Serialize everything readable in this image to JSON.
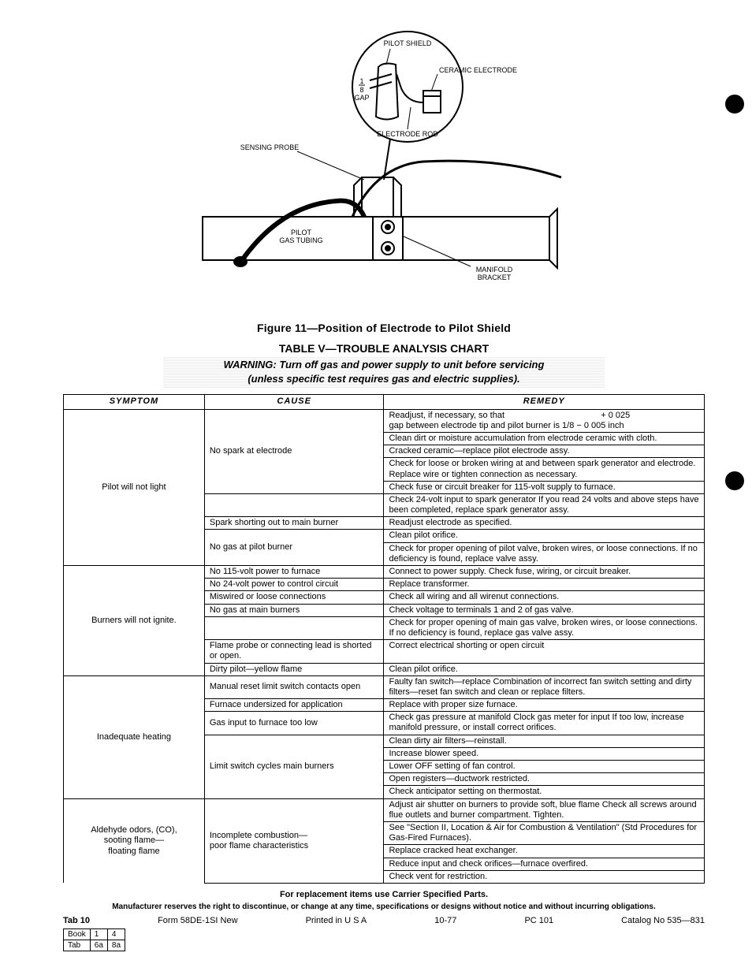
{
  "diagram": {
    "labels": {
      "pilot_shield": "PILOT SHIELD",
      "ceramic_electrode": "CERAMIC ELECTRODE",
      "gap_fraction_top": "1",
      "gap_fraction_bot": "8",
      "gap_word": "GAP",
      "electrode_rod": "ELECTRODE ROD",
      "sensing_probe": "SENSING PROBE",
      "pilot_gas_tubing_l1": "PILOT",
      "pilot_gas_tubing_l2": "GAS TUBING",
      "manifold_l1": "MANIFOLD",
      "manifold_l2": "BRACKET"
    }
  },
  "figure_caption": "Figure 11—Position of Electrode to Pilot Shield",
  "table_title": "TABLE V—TROUBLE ANALYSIS CHART",
  "warning_line1": "WARNING: Turn off gas and power supply to unit before servicing",
  "warning_line2": "(unless specific test requires gas and electric supplies).",
  "headers": {
    "symptom": "SYMPTOM",
    "cause": "CAUSE",
    "remedy": "REMEDY"
  },
  "rows": [
    {
      "section_top": true,
      "symptom": "Pilot will not light",
      "symptom_rowspan": 9,
      "cause": "No spark at electrode",
      "cause_rowspan": 5,
      "remedy": "Readjust, if necessary, so that                                        + 0 025\ngap between electrode tip and pilot burner is 1/8 − 0 005 inch"
    },
    {
      "remedy": "Clean dirt or moisture accumulation from electrode ceramic with cloth."
    },
    {
      "remedy": "Cracked ceramic—replace pilot electrode assy."
    },
    {
      "remedy": "Check for loose or broken wiring at and between spark generator and electrode. Replace wire or tighten connection as necessary."
    },
    {
      "remedy": "Check fuse or circuit breaker for 115-volt supply to furnace."
    },
    {
      "cause": "",
      "cause_rowspan": 1,
      "remedy": "Check 24-volt input to spark generator  If you read 24 volts and above steps have been completed, replace spark generator assy."
    },
    {
      "cause": "Spark shorting out to main burner",
      "cause_rowspan": 1,
      "remedy": "Readjust electrode as specified."
    },
    {
      "cause": "No gas at pilot burner",
      "cause_rowspan": 2,
      "remedy": "Clean pilot orifice."
    },
    {
      "remedy": "Check for proper opening of pilot valve, broken wires, or loose connections. If no deficiency is found, replace valve assy."
    },
    {
      "section_top": true,
      "symptom": "Burners will not ignite.",
      "symptom_rowspan": 7,
      "cause": "No 115-volt power to furnace",
      "cause_rowspan": 1,
      "remedy": "Connect to power supply. Check fuse, wiring, or circuit breaker."
    },
    {
      "cause": "No 24-volt power to control circuit",
      "cause_rowspan": 1,
      "remedy": "Replace transformer."
    },
    {
      "cause": "Miswired or loose connections",
      "cause_rowspan": 1,
      "remedy": "Check all wiring and all wirenut connections."
    },
    {
      "cause": "No gas at main burners",
      "cause_rowspan": 1,
      "remedy": "Check voltage to terminals 1 and 2 of gas valve."
    },
    {
      "cause": "",
      "cause_rowspan": 1,
      "remedy": "Check for proper opening of main gas valve, broken wires, or loose connections. If no deficiency is found, replace gas valve assy."
    },
    {
      "cause": "Flame probe or connecting lead is shorted or open.",
      "cause_rowspan": 1,
      "remedy": "Correct electrical shorting or open circuit"
    },
    {
      "cause": "Dirty pilot—yellow flame",
      "cause_rowspan": 1,
      "remedy": "Clean pilot orifice."
    },
    {
      "section_top": true,
      "symptom": "Inadequate heating",
      "symptom_rowspan": 8,
      "cause": "Manual reset limit switch contacts open",
      "cause_rowspan": 1,
      "remedy": "Faulty fan switch—replace  Combination of incorrect fan switch setting and dirty filters—reset fan switch and clean or replace filters."
    },
    {
      "cause": "Furnace undersized for application",
      "cause_rowspan": 1,
      "remedy": "Replace with proper size furnace."
    },
    {
      "cause": "Gas input to furnace too low",
      "cause_rowspan": 1,
      "remedy": "Check gas pressure at manifold  Clock gas meter for input  If too low, increase manifold pressure, or install correct orifices."
    },
    {
      "cause": "Limit switch cycles main burners",
      "cause_rowspan": 5,
      "remedy": "Clean dirty air filters—reinstall."
    },
    {
      "remedy": "Increase blower speed."
    },
    {
      "remedy": "Lower OFF setting of fan control."
    },
    {
      "remedy": "Open registers—ductwork restricted."
    },
    {
      "remedy": "Check anticipator setting on thermostat."
    },
    {
      "section_top": true,
      "symptom": "Aldehyde odors, (CO),\nsooting flame—\nfloating flame",
      "symptom_rowspan": 5,
      "cause": "Incomplete combustion—\npoor flame characteristics",
      "cause_rowspan": 5,
      "remedy": "Adjust air shutter on burners to provide soft, blue flame  Check all screws around flue outlets and burner compartment. Tighten."
    },
    {
      "remedy": "See \"Section II, Location & Air for Combustion & Ventilation\" (Std Procedures for Gas-Fired Furnaces)."
    },
    {
      "remedy": "Replace cracked heat exchanger."
    },
    {
      "remedy": "Reduce input and check orifices—furnace overfired."
    },
    {
      "remedy": "Check vent for restriction."
    }
  ],
  "replacement_note": "For replacement items use Carrier Specified Parts.",
  "disclaimer": "Manufacturer reserves the right to discontinue, or change at any time, specifications or designs without notice and without incurring obligations.",
  "footer": {
    "tab": "Tab 10",
    "form": "Form 58DE-1SI  New",
    "printed": "Printed in U S A",
    "date": "10-77",
    "pc": "PC 101",
    "catalog": "Catalog No  535—831"
  },
  "booktable": {
    "r1c1": "Book",
    "r1c2": "1",
    "r1c3": "4",
    "r2c1": "Tab",
    "r2c2": "6a",
    "r2c3": "8a"
  }
}
